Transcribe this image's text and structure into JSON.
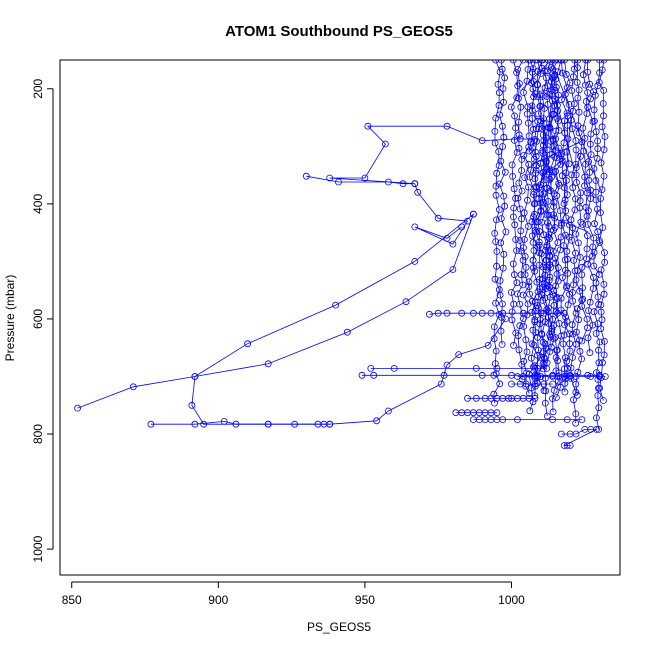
{
  "chart_data": {
    "type": "scatter",
    "title": "ATOM1 Southbound PS_GEOS5",
    "xlabel": "PS_GEOS5",
    "ylabel": "Pressure (mbar)",
    "xlim": [
      846,
      1037
    ],
    "ylim": [
      1045,
      150
    ],
    "y_axis_inverted": true,
    "x_ticks": [
      850,
      900,
      950,
      1000
    ],
    "y_ticks": [
      200,
      400,
      600,
      800,
      1000
    ],
    "grid": false,
    "legend": "none",
    "series_color": "#0000ff",
    "marker": "open-circle",
    "series": [
      {
        "points": [
          [
            852,
            755
          ],
          [
            871,
            718
          ],
          [
            892,
            700
          ],
          [
            917,
            678
          ],
          [
            944,
            623
          ],
          [
            964,
            570
          ],
          [
            980,
            514
          ],
          [
            987,
            418
          ],
          [
            987,
            418
          ],
          [
            967,
            500
          ],
          [
            940,
            576
          ],
          [
            910,
            643
          ],
          [
            892,
            700
          ],
          [
            891,
            750
          ],
          [
            895,
            783
          ],
          [
            917,
            783
          ],
          [
            926,
            783
          ],
          [
            934,
            783
          ],
          [
            938,
            783
          ],
          [
            954,
            777
          ],
          [
            958,
            760
          ],
          [
            976,
            713
          ],
          [
            978,
            680
          ],
          [
            982,
            662
          ],
          [
            992,
            646
          ],
          [
            998,
            600
          ]
        ]
      },
      {
        "points": [
          [
            930,
            352
          ],
          [
            941,
            362
          ],
          [
            958,
            362
          ],
          [
            963,
            365
          ],
          [
            967,
            365
          ],
          [
            938,
            355
          ],
          [
            950,
            355
          ],
          [
            957,
            296
          ],
          [
            951,
            265
          ],
          [
            978,
            265
          ],
          [
            990,
            290
          ],
          [
            1003,
            287
          ],
          [
            1008,
            288
          ]
        ]
      },
      {
        "points": [
          [
            967,
            365
          ],
          [
            968,
            380
          ],
          [
            975,
            425
          ],
          [
            985,
            430
          ],
          [
            980,
            470
          ],
          [
            967,
            440
          ],
          [
            978,
            460
          ],
          [
            983,
            440
          ]
        ]
      },
      {
        "points": [
          [
            877,
            783
          ],
          [
            892,
            783
          ],
          [
            902,
            778
          ],
          [
            906,
            783
          ],
          [
            917,
            783
          ],
          [
            936,
            783
          ],
          [
            938,
            783
          ]
        ]
      },
      {
        "points": [
          [
            972,
            592
          ],
          [
            975,
            590
          ],
          [
            978,
            590
          ],
          [
            983,
            590
          ],
          [
            987,
            590
          ],
          [
            990,
            590
          ],
          [
            993,
            590
          ],
          [
            997,
            590
          ],
          [
            1004,
            590
          ],
          [
            1011,
            590
          ],
          [
            1018,
            590
          ]
        ]
      },
      {
        "points": [
          [
            949,
            698
          ],
          [
            953,
            698
          ],
          [
            977,
            698
          ],
          [
            990,
            698
          ],
          [
            994,
            698
          ],
          [
            1000,
            698
          ],
          [
            1008,
            698
          ],
          [
            1014,
            698
          ],
          [
            1020,
            698
          ],
          [
            1026,
            698
          ],
          [
            1030,
            698
          ]
        ]
      },
      {
        "points": [
          [
            952,
            686
          ],
          [
            960,
            686
          ],
          [
            988,
            686
          ],
          [
            995,
            686
          ],
          [
            1008,
            686
          ],
          [
            1012,
            686
          ]
        ]
      },
      {
        "points": [
          [
            985,
            738
          ],
          [
            988,
            738
          ],
          [
            991,
            738
          ],
          [
            993,
            738
          ],
          [
            995,
            738
          ],
          [
            997,
            738
          ],
          [
            999,
            738
          ],
          [
            1000,
            738
          ],
          [
            1002,
            738
          ],
          [
            1004,
            738
          ],
          [
            1006,
            738
          ],
          [
            1008,
            738
          ]
        ]
      },
      {
        "points": [
          [
            981,
            763
          ],
          [
            983,
            763
          ],
          [
            985,
            763
          ],
          [
            987,
            763
          ],
          [
            989,
            763
          ],
          [
            991,
            763
          ],
          [
            993,
            763
          ],
          [
            995,
            763
          ]
        ]
      },
      {
        "points": [
          [
            987,
            775
          ],
          [
            989,
            775
          ],
          [
            991,
            775
          ],
          [
            993,
            775
          ],
          [
            995,
            775
          ],
          [
            997,
            775
          ],
          [
            1002,
            775
          ],
          [
            1014,
            775
          ],
          [
            1019,
            775
          ],
          [
            1024,
            775
          ]
        ]
      },
      {
        "points": [
          [
            1000,
            713
          ],
          [
            1003,
            713
          ],
          [
            1005,
            713
          ],
          [
            1008,
            713
          ],
          [
            1011,
            713
          ],
          [
            1014,
            713
          ]
        ]
      },
      {
        "points": [
          [
            1017,
            800
          ],
          [
            1020,
            800
          ],
          [
            1022,
            800
          ],
          [
            1025,
            792
          ],
          [
            1027,
            792
          ],
          [
            1029,
            792
          ],
          [
            1018,
            820
          ],
          [
            1019,
            820
          ],
          [
            1020,
            820
          ]
        ]
      },
      {
        "points": [
          [
            1002,
            700
          ],
          [
            1004,
            700
          ],
          [
            1008,
            700
          ],
          [
            1010,
            700
          ],
          [
            1014,
            700
          ],
          [
            1016,
            700
          ],
          [
            1018,
            700
          ],
          [
            1020,
            700
          ],
          [
            1022,
            700
          ],
          [
            1027,
            700
          ],
          [
            1030,
            700
          ],
          [
            1032,
            700
          ]
        ]
      }
    ],
    "vertical_profiles_note": "dense near-vertical profiles between PS_GEOS5 ~993 and ~1032 spanning pressure ~150-800 mbar"
  }
}
